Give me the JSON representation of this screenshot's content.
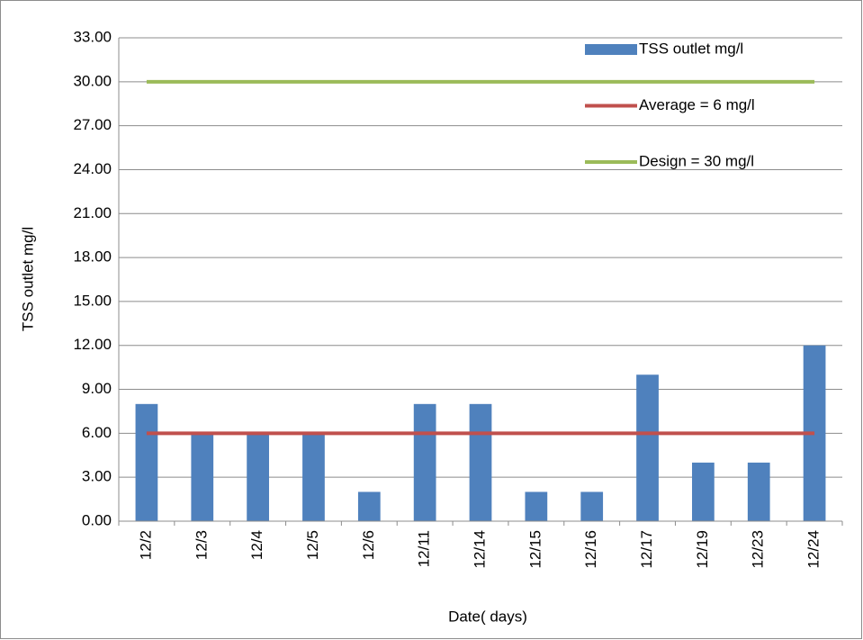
{
  "chart_data": {
    "type": "bar",
    "categories": [
      "12/2",
      "12/3",
      "12/4",
      "12/5",
      "12/6",
      "12/11",
      "12/14",
      "12/15",
      "12/16",
      "12/17",
      "12/19",
      "12/23",
      "12/24"
    ],
    "series": [
      {
        "name": "TSS outlet mg/l",
        "type": "bar",
        "color": "#4f81bd",
        "values": [
          8,
          6,
          6,
          6,
          2,
          8,
          8,
          2,
          2,
          10,
          4,
          4,
          12
        ]
      },
      {
        "name": "Average = 6 mg/l",
        "type": "line",
        "color": "#c0504d",
        "values": [
          6,
          6,
          6,
          6,
          6,
          6,
          6,
          6,
          6,
          6,
          6,
          6,
          6
        ]
      },
      {
        "name": "Design = 30 mg/l",
        "type": "line",
        "color": "#9bbb59",
        "values": [
          30,
          30,
          30,
          30,
          30,
          30,
          30,
          30,
          30,
          30,
          30,
          30,
          30
        ]
      }
    ],
    "x_label": "Date( days)",
    "y_label": "TSS outlet mg/l",
    "ylim": [
      0,
      33
    ],
    "yticks": [
      {
        "value": 0,
        "label": "0.00"
      },
      {
        "value": 3,
        "label": "3.00"
      },
      {
        "value": 6,
        "label": "6.00"
      },
      {
        "value": 9,
        "label": "9.00"
      },
      {
        "value": 12,
        "label": "12.00"
      },
      {
        "value": 15,
        "label": "15.00"
      },
      {
        "value": 18,
        "label": "18.00"
      },
      {
        "value": 21,
        "label": "21.00"
      },
      {
        "value": 24,
        "label": "24.00"
      },
      {
        "value": 27,
        "label": "27.00"
      },
      {
        "value": 30,
        "label": "30.00"
      },
      {
        "value": 33,
        "label": "33.00"
      }
    ],
    "grid": true,
    "legend": "top-right"
  }
}
